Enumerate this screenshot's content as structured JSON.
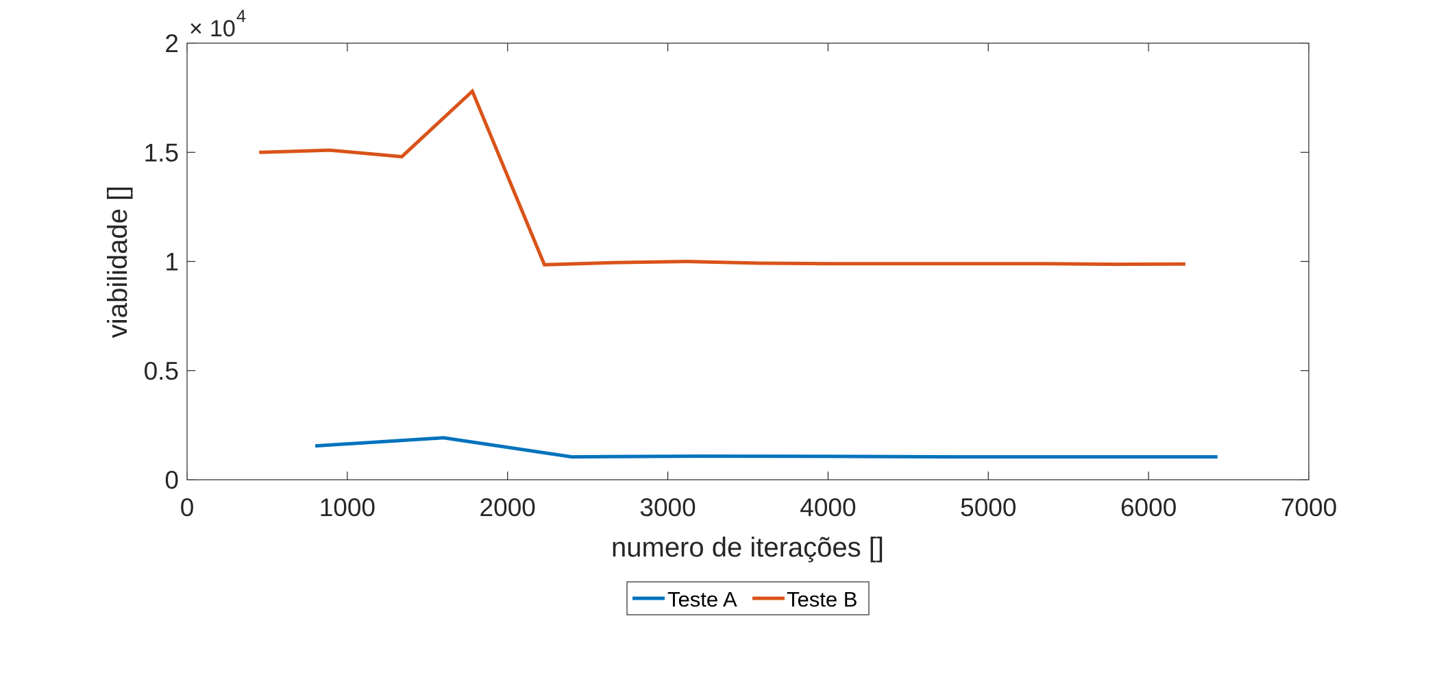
{
  "chart_data": {
    "type": "line",
    "title": "",
    "xlabel": "numero de iterações []",
    "ylabel": "viabilidade []",
    "xlim": [
      0,
      7000
    ],
    "ylim": [
      0,
      20000
    ],
    "xticks": [
      0,
      1000,
      2000,
      3000,
      4000,
      5000,
      6000,
      7000
    ],
    "xtick_labels": [
      "0",
      "1000",
      "2000",
      "3000",
      "4000",
      "5000",
      "6000",
      "7000"
    ],
    "yticks": [
      0,
      5000,
      10000,
      15000,
      20000
    ],
    "ytick_labels": [
      "0",
      "0.5",
      "1",
      "1.5",
      "2"
    ],
    "y_exponent": {
      "times": "×",
      "base": "10",
      "power": "4"
    },
    "grid": false,
    "legend_placement": "bottom-center",
    "series": [
      {
        "name": "Teste A",
        "color": "#0072BD",
        "x": [
          800,
          1600,
          2400,
          3200,
          4000,
          4800,
          5600,
          6430
        ],
        "y": [
          1550,
          1920,
          1050,
          1080,
          1070,
          1050,
          1050,
          1050
        ]
      },
      {
        "name": "Teste B",
        "color": "#D95319",
        "x": [
          450,
          890,
          1340,
          1780,
          2230,
          2680,
          3120,
          3570,
          4020,
          4460,
          4910,
          5350,
          5800,
          6230
        ],
        "y": [
          15000,
          15100,
          14800,
          17800,
          9850,
          9950,
          10000,
          9920,
          9900,
          9900,
          9900,
          9900,
          9870,
          9880
        ]
      }
    ]
  }
}
